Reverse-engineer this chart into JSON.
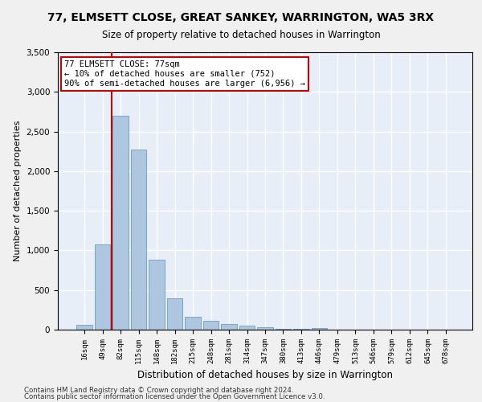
{
  "title": "77, ELMSETT CLOSE, GREAT SANKEY, WARRINGTON, WA5 3RX",
  "subtitle": "Size of property relative to detached houses in Warrington",
  "xlabel": "Distribution of detached houses by size in Warrington",
  "ylabel": "Number of detached properties",
  "footnote1": "Contains HM Land Registry data © Crown copyright and database right 2024.",
  "footnote2": "Contains public sector information licensed under the Open Government Licence v3.0.",
  "bar_labels": [
    "16sqm",
    "49sqm",
    "82sqm",
    "115sqm",
    "148sqm",
    "182sqm",
    "215sqm",
    "248sqm",
    "281sqm",
    "314sqm",
    "347sqm",
    "380sqm",
    "413sqm",
    "446sqm",
    "479sqm",
    "513sqm",
    "546sqm",
    "579sqm",
    "612sqm",
    "645sqm",
    "678sqm"
  ],
  "bar_values": [
    60,
    1080,
    2700,
    2270,
    880,
    400,
    165,
    110,
    70,
    55,
    30,
    15,
    10,
    25,
    5,
    5,
    2,
    2,
    2,
    2,
    2
  ],
  "bar_color": "#aec6e0",
  "bar_edge_color": "#6a9fc0",
  "background_color": "#e8eef8",
  "grid_color": "#ffffff",
  "vline_color": "#cc0000",
  "annotation_text": "77 ELMSETT CLOSE: 77sqm\n← 10% of detached houses are smaller (752)\n90% of semi-detached houses are larger (6,956) →",
  "annotation_box_color": "#ffffff",
  "annotation_box_edge_color": "#cc0000",
  "ylim": [
    0,
    3500
  ],
  "yticks": [
    0,
    500,
    1000,
    1500,
    2000,
    2500,
    3000,
    3500
  ]
}
